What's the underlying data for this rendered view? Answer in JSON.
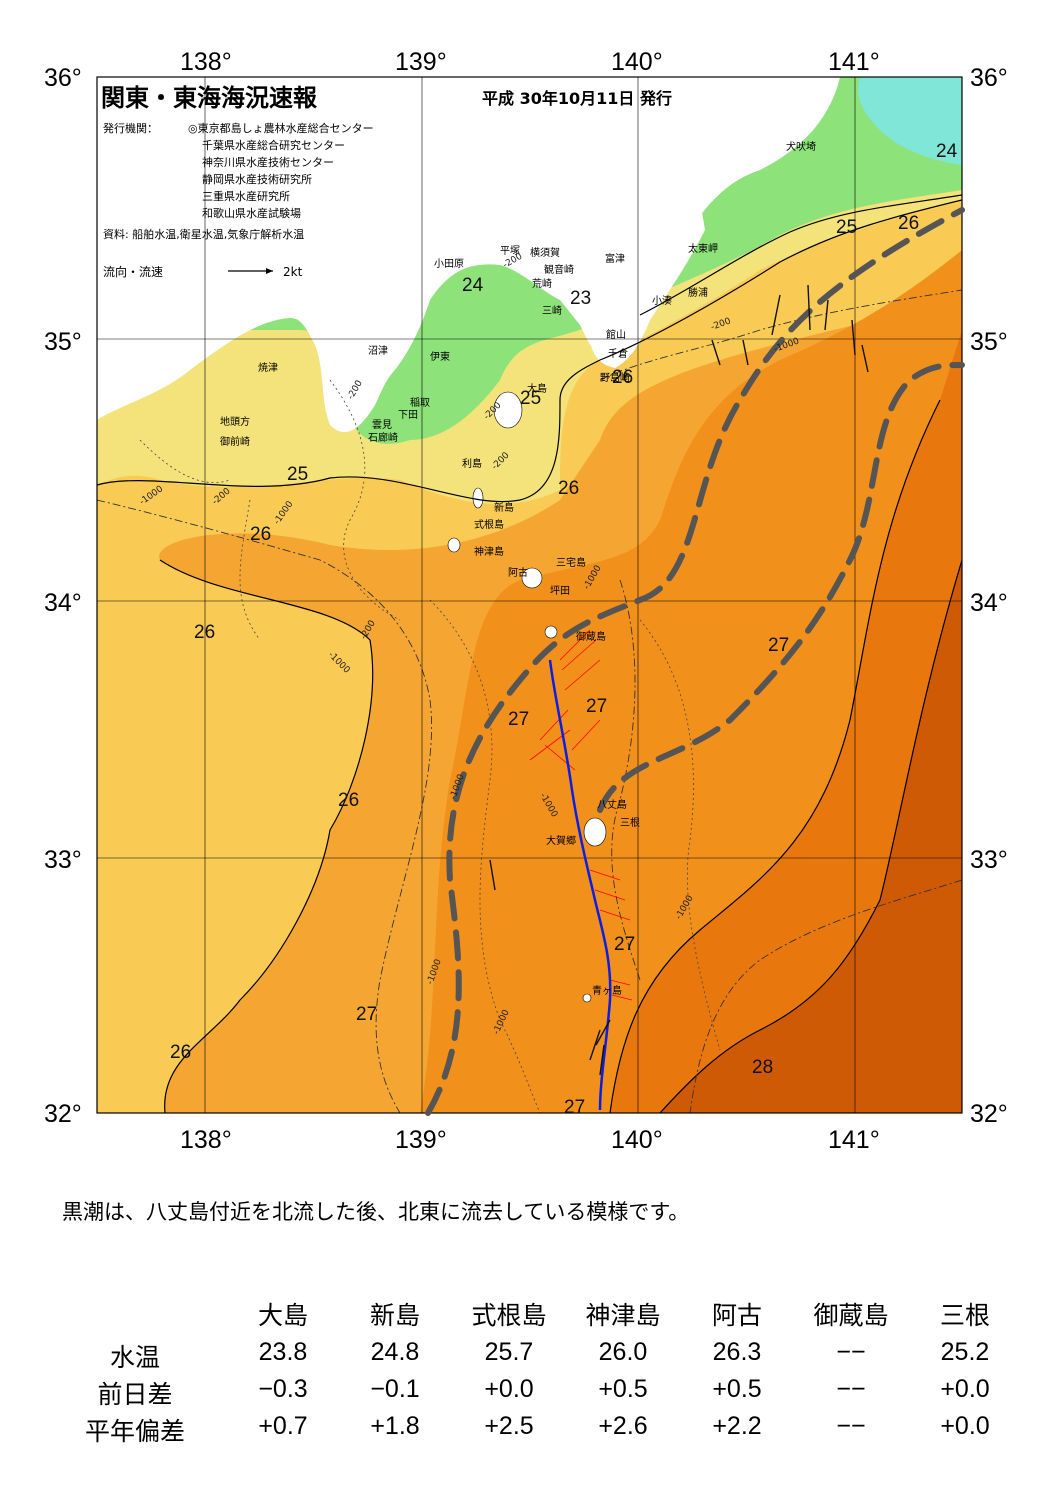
{
  "map": {
    "title": "関東・東海海況速報",
    "date": "平成  30年10月11日  発行",
    "issuer_label": "発行機関：",
    "issuers": [
      "◎東京都島しょ農林水産総合センター",
      "千葉県水産総合研究センター",
      "神奈川県水産技術センター",
      "静岡県水産技術研究所",
      "三重県水産研究所",
      "和歌山県水産試験場"
    ],
    "source": "資料: 船舶水温,衛星水温,気象庁解析水温",
    "legend_label": "流向・流速",
    "legend_speed": "2kt",
    "lon_labels": [
      "138°",
      "139°",
      "140°",
      "141°"
    ],
    "lat_labels": [
      "36°",
      "35°",
      "34°",
      "33°",
      "32°"
    ],
    "isotherm_labels": [
      "24",
      "24",
      "23",
      "25",
      "26",
      "25",
      "25",
      "26",
      "26",
      "26",
      "26",
      "27",
      "27",
      "27",
      "27",
      "26",
      "27",
      "28",
      "26",
      "27"
    ],
    "depth_label_200": "-200",
    "depth_label_1000": "-1000",
    "places": [
      "犬吠埼",
      "太東岬",
      "勝浦",
      "小湊",
      "富津",
      "横須賀",
      "観音崎",
      "平塚",
      "小田原",
      "荒崎",
      "三崎",
      "館山",
      "千倉",
      "野島崎",
      "沼津",
      "伊東",
      "焼津",
      "稲取",
      "下田",
      "雲見",
      "石廊崎",
      "地頭方",
      "御前崎",
      "大島",
      "利島",
      "新島",
      "式根島",
      "神津島",
      "三宅島",
      "阿古",
      "坪田",
      "御蔵島",
      "八丈島",
      "三根",
      "大賀郷",
      "青ヶ島"
    ],
    "colors": {
      "t23": "#7fe6d8",
      "t24": "#8ee27a",
      "t25": "#f4e27a",
      "t26": "#f9cb55",
      "t27": "#f5a632",
      "t27b": "#f2901c",
      "t28": "#e8780e",
      "t29": "#cf5a06",
      "land": "#ffffff",
      "kuroshio": "#555555",
      "track": "#0a1ee6",
      "vector": "#ff0000"
    }
  },
  "summary": "黒潮は、八丈島付近を北流した後、北東に流去している模様です。",
  "table": {
    "columns": [
      "大島",
      "新島",
      "式根島",
      "神津島",
      "阿古",
      "御蔵島",
      "三根"
    ],
    "rows": [
      {
        "label": "水温",
        "values": [
          "23.8",
          "24.8",
          "25.7",
          "26.0",
          "26.3",
          "−−",
          "25.2"
        ]
      },
      {
        "label": "前日差",
        "values": [
          "−0.3",
          "−0.1",
          "+0.0",
          "+0.5",
          "+0.5",
          "−−",
          "+0.0"
        ]
      },
      {
        "label": "平年偏差",
        "values": [
          "+0.7",
          "+1.8",
          "+2.5",
          "+2.6",
          "+2.2",
          "−−",
          "+0.0"
        ]
      }
    ]
  }
}
